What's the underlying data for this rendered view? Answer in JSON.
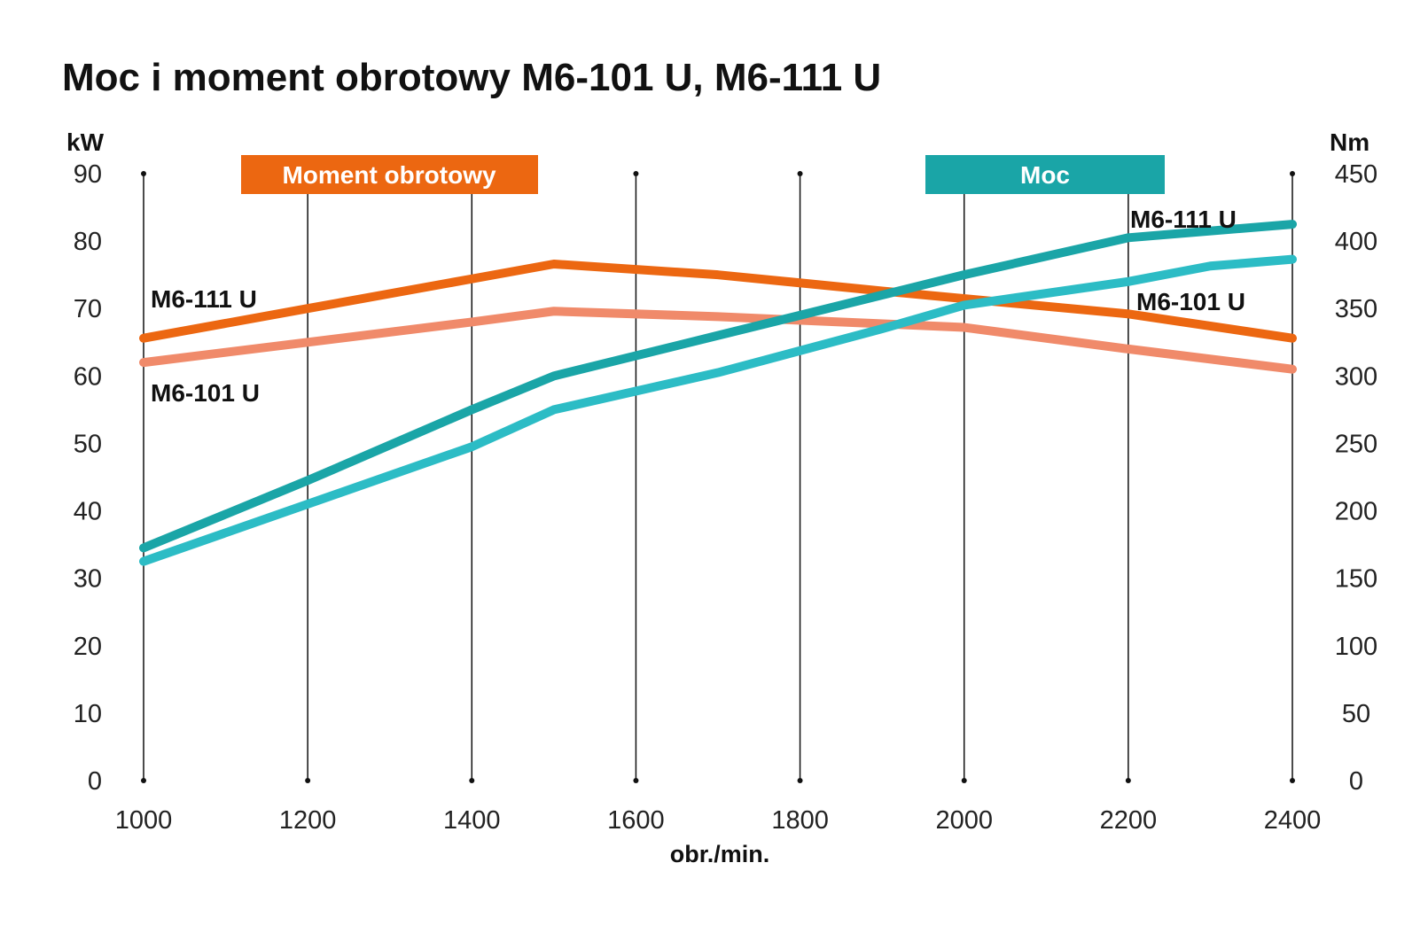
{
  "chart_data": {
    "type": "line",
    "title": "Moc i moment obrotowy M6-101 U, M6-111 U",
    "xlabel": "obr./min.",
    "y_left_unit": "kW",
    "y_right_unit": "Nm",
    "x_ticks": [
      1000,
      1200,
      1400,
      1600,
      1800,
      2000,
      2200,
      2400
    ],
    "y_left_ticks": [
      0,
      10,
      20,
      30,
      40,
      50,
      60,
      70,
      80,
      90
    ],
    "y_right_ticks": [
      0,
      50,
      100,
      150,
      200,
      250,
      300,
      350,
      400,
      450
    ],
    "xlim": [
      1000,
      2400
    ],
    "ylim_left": [
      0,
      90
    ],
    "ylim_right": [
      0,
      450
    ],
    "grid": "vertical",
    "legend": [
      {
        "label": "Moment obrotowy",
        "color": "#ec6711"
      },
      {
        "label": "Moc",
        "color": "#1aa5a7"
      }
    ],
    "series": [
      {
        "name": "M6-111 U",
        "group": "Moment obrotowy",
        "axis": "right",
        "color": "#ec6711",
        "points": [
          [
            1000,
            328
          ],
          [
            1200,
            350
          ],
          [
            1400,
            372
          ],
          [
            1500,
            383
          ],
          [
            1700,
            375
          ],
          [
            1900,
            363
          ],
          [
            2200,
            346
          ],
          [
            2400,
            328
          ]
        ]
      },
      {
        "name": "M6-101 U",
        "group": "Moment obrotowy",
        "axis": "right",
        "color": "#f08a6a",
        "points": [
          [
            1000,
            310
          ],
          [
            1200,
            325
          ],
          [
            1400,
            340
          ],
          [
            1500,
            348
          ],
          [
            1700,
            344
          ],
          [
            2000,
            336
          ],
          [
            2200,
            320
          ],
          [
            2400,
            305
          ]
        ]
      },
      {
        "name": "M6-111 U",
        "group": "Moc",
        "axis": "left",
        "color": "#1aa5a7",
        "points": [
          [
            1000,
            34.5
          ],
          [
            1200,
            44.5
          ],
          [
            1400,
            55
          ],
          [
            1500,
            60
          ],
          [
            1700,
            66
          ],
          [
            1900,
            72
          ],
          [
            2000,
            75
          ],
          [
            2200,
            80.5
          ],
          [
            2400,
            82.5
          ]
        ]
      },
      {
        "name": "M6-101 U",
        "group": "Moc",
        "axis": "left",
        "color": "#2cbcc5",
        "points": [
          [
            1000,
            32.5
          ],
          [
            1200,
            41
          ],
          [
            1400,
            49.5
          ],
          [
            1500,
            55
          ],
          [
            1700,
            60.5
          ],
          [
            1900,
            67
          ],
          [
            2000,
            70.5
          ],
          [
            2200,
            74
          ],
          [
            2300,
            76.3
          ],
          [
            2400,
            77.3
          ]
        ]
      }
    ],
    "annotations": [
      {
        "text": "M6-111 U"
      },
      {
        "text": "M6-101 U"
      },
      {
        "text": "M6-111 U"
      },
      {
        "text": "M6-101 U"
      }
    ]
  }
}
